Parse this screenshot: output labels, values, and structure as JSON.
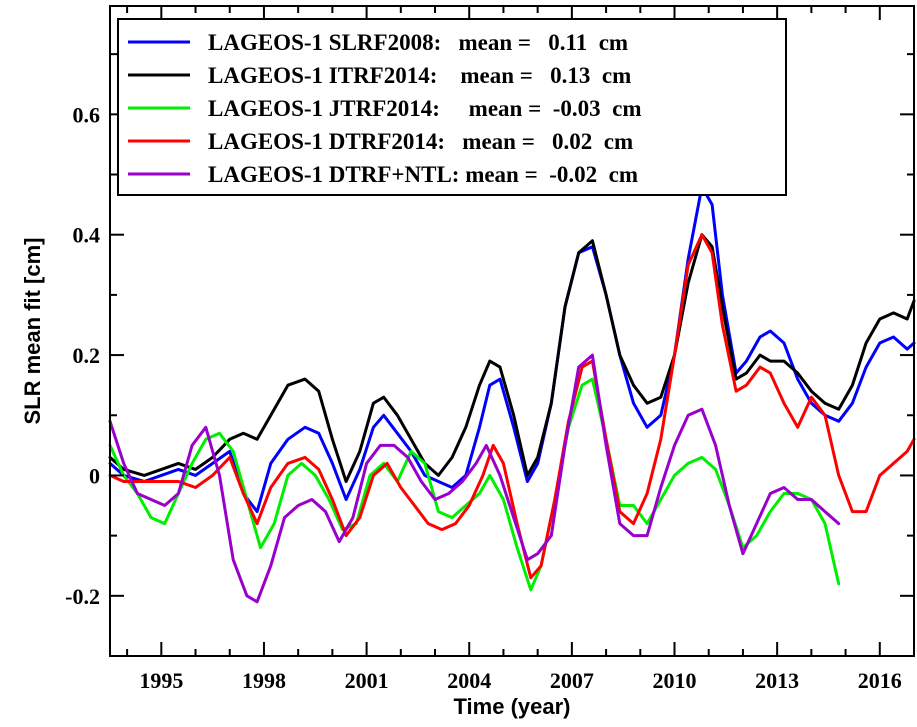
{
  "chart_data": {
    "type": "line",
    "title": "",
    "xlabel": "Time (year)",
    "ylabel": "SLR mean fit [cm]",
    "xlim": [
      1993.5,
      2017.0
    ],
    "ylim": [
      -0.3,
      0.78
    ],
    "x_ticks": [
      1995,
      1998,
      2001,
      2004,
      2007,
      2010,
      2013,
      2016
    ],
    "x_tick_labels": [
      "1995",
      "1998",
      "2001",
      "2004",
      "2007",
      "2010",
      "2013",
      "2016"
    ],
    "y_ticks": [
      -0.2,
      0,
      0.2,
      0.4,
      0.6
    ],
    "y_tick_labels": [
      "-0.2",
      "0",
      "0.2",
      "0.4",
      "0.6"
    ],
    "grid": false,
    "legend_position": "top-left",
    "series": [
      {
        "name": "LAGEOS-1 SLRF2008:",
        "legend_text": "LAGEOS-1 SLRF2008:   mean =   0.11  cm",
        "color": "#0000ff",
        "x": [
          1993.5,
          1993.9,
          1994.5,
          1995.0,
          1995.5,
          1996.0,
          1996.5,
          1997.0,
          1997.4,
          1997.8,
          1998.2,
          1998.7,
          1999.2,
          1999.6,
          2000.0,
          2000.4,
          2000.8,
          2001.2,
          2001.5,
          2001.9,
          2002.3,
          2002.7,
          2003.1,
          2003.5,
          2003.9,
          2004.3,
          2004.6,
          2004.9,
          2005.3,
          2005.7,
          2006.0,
          2006.4,
          2006.8,
          2007.2,
          2007.6,
          2008.0,
          2008.4,
          2008.8,
          2009.2,
          2009.6,
          2010.0,
          2010.4,
          2010.8,
          2011.1,
          2011.4,
          2011.8,
          2012.1,
          2012.5,
          2012.8,
          2013.2,
          2013.6,
          2014.0,
          2014.4,
          2014.8,
          2015.2,
          2015.6,
          2016.0,
          2016.4,
          2016.8,
          2017.0
        ],
        "y": [
          0.02,
          0.0,
          -0.01,
          0.0,
          0.01,
          0.0,
          0.02,
          0.04,
          -0.03,
          -0.06,
          0.02,
          0.06,
          0.08,
          0.07,
          0.02,
          -0.04,
          0.01,
          0.08,
          0.1,
          0.07,
          0.04,
          0.0,
          -0.01,
          -0.02,
          0.0,
          0.08,
          0.15,
          0.16,
          0.08,
          -0.01,
          0.02,
          0.12,
          0.28,
          0.37,
          0.38,
          0.3,
          0.2,
          0.12,
          0.08,
          0.1,
          0.2,
          0.36,
          0.48,
          0.45,
          0.3,
          0.17,
          0.19,
          0.23,
          0.24,
          0.22,
          0.16,
          0.12,
          0.1,
          0.09,
          0.12,
          0.18,
          0.22,
          0.23,
          0.21,
          0.22
        ]
      },
      {
        "name": "LAGEOS-1 ITRF2014:",
        "legend_text": "LAGEOS-1 ITRF2014:    mean =   0.13  cm",
        "color": "#000000",
        "x": [
          1993.5,
          1993.9,
          1994.5,
          1995.0,
          1995.5,
          1996.0,
          1996.5,
          1997.0,
          1997.4,
          1997.8,
          1998.2,
          1998.7,
          1999.2,
          1999.6,
          2000.0,
          2000.4,
          2000.8,
          2001.2,
          2001.5,
          2001.9,
          2002.3,
          2002.7,
          2003.1,
          2003.5,
          2003.9,
          2004.3,
          2004.6,
          2004.9,
          2005.3,
          2005.7,
          2006.0,
          2006.4,
          2006.8,
          2007.2,
          2007.6,
          2008.0,
          2008.4,
          2008.8,
          2009.2,
          2009.6,
          2010.0,
          2010.4,
          2010.8,
          2011.1,
          2011.4,
          2011.8,
          2012.1,
          2012.5,
          2012.8,
          2013.2,
          2013.6,
          2014.0,
          2014.4,
          2014.8,
          2015.2,
          2015.6,
          2016.0,
          2016.4,
          2016.8,
          2017.0
        ],
        "y": [
          0.03,
          0.01,
          0.0,
          0.01,
          0.02,
          0.01,
          0.03,
          0.06,
          0.07,
          0.06,
          0.1,
          0.15,
          0.16,
          0.14,
          0.06,
          -0.01,
          0.04,
          0.12,
          0.13,
          0.1,
          0.06,
          0.02,
          0.0,
          0.03,
          0.08,
          0.15,
          0.19,
          0.18,
          0.1,
          0.0,
          0.03,
          0.12,
          0.28,
          0.37,
          0.39,
          0.3,
          0.2,
          0.15,
          0.12,
          0.13,
          0.2,
          0.32,
          0.4,
          0.38,
          0.28,
          0.16,
          0.17,
          0.2,
          0.19,
          0.19,
          0.17,
          0.14,
          0.12,
          0.11,
          0.15,
          0.22,
          0.26,
          0.27,
          0.26,
          0.29
        ]
      },
      {
        "name": "LAGEOS-1 JTRF2014:",
        "legend_text": "LAGEOS-1 JTRF2014:     mean =  -0.03  cm",
        "color": "#00ee00",
        "x": [
          1993.5,
          1993.9,
          1994.3,
          1994.7,
          1995.1,
          1995.5,
          1995.9,
          1996.3,
          1996.7,
          1997.1,
          1997.5,
          1997.9,
          1998.3,
          1998.7,
          1999.1,
          1999.5,
          1999.9,
          2000.3,
          2000.7,
          2001.1,
          2001.5,
          2001.9,
          2002.3,
          2002.7,
          2003.1,
          2003.5,
          2003.9,
          2004.3,
          2004.6,
          2005.0,
          2005.4,
          2005.8,
          2006.1,
          2006.5,
          2006.9,
          2007.3,
          2007.6,
          2008.0,
          2008.4,
          2008.8,
          2009.2,
          2009.6,
          2010.0,
          2010.4,
          2010.8,
          2011.2,
          2011.6,
          2012.0,
          2012.4,
          2012.8,
          2013.2,
          2013.6,
          2014.0,
          2014.4,
          2014.8
        ],
        "y": [
          0.05,
          0.0,
          -0.03,
          -0.07,
          -0.08,
          -0.03,
          0.02,
          0.06,
          0.07,
          0.04,
          -0.04,
          -0.12,
          -0.08,
          0.0,
          0.02,
          0.0,
          -0.04,
          -0.09,
          -0.08,
          0.0,
          0.02,
          -0.01,
          0.04,
          0.02,
          -0.06,
          -0.07,
          -0.05,
          -0.03,
          0.0,
          -0.04,
          -0.12,
          -0.19,
          -0.15,
          -0.04,
          0.08,
          0.15,
          0.16,
          0.06,
          -0.05,
          -0.05,
          -0.08,
          -0.04,
          0.0,
          0.02,
          0.03,
          0.01,
          -0.05,
          -0.12,
          -0.1,
          -0.06,
          -0.03,
          -0.03,
          -0.04,
          -0.08,
          -0.18
        ]
      },
      {
        "name": "LAGEOS-1 DTRF2014:",
        "legend_text": "LAGEOS-1 DTRF2014:   mean =   0.02  cm",
        "color": "#ff0000",
        "x": [
          1993.5,
          1993.9,
          1994.5,
          1995.0,
          1995.5,
          1996.0,
          1996.5,
          1997.0,
          1997.4,
          1997.8,
          1998.2,
          1998.7,
          1999.2,
          1999.6,
          2000.0,
          2000.4,
          2000.8,
          2001.2,
          2001.6,
          2002.0,
          2002.4,
          2002.8,
          2003.2,
          2003.6,
          2004.0,
          2004.4,
          2004.7,
          2005.0,
          2005.4,
          2005.8,
          2006.1,
          2006.5,
          2006.9,
          2007.3,
          2007.6,
          2008.0,
          2008.4,
          2008.8,
          2009.2,
          2009.6,
          2010.0,
          2010.4,
          2010.8,
          2011.1,
          2011.4,
          2011.8,
          2012.1,
          2012.5,
          2012.8,
          2013.2,
          2013.6,
          2014.0,
          2014.4,
          2014.8,
          2015.2,
          2015.6,
          2016.0,
          2016.4,
          2016.8,
          2017.0
        ],
        "y": [
          0.0,
          -0.01,
          -0.01,
          -0.01,
          -0.01,
          -0.02,
          0.0,
          0.03,
          -0.03,
          -0.08,
          -0.02,
          0.02,
          0.03,
          0.01,
          -0.04,
          -0.1,
          -0.07,
          0.0,
          0.02,
          -0.02,
          -0.05,
          -0.08,
          -0.09,
          -0.08,
          -0.05,
          0.0,
          0.05,
          0.02,
          -0.08,
          -0.17,
          -0.15,
          -0.04,
          0.09,
          0.18,
          0.19,
          0.06,
          -0.06,
          -0.08,
          -0.03,
          0.06,
          0.2,
          0.35,
          0.4,
          0.37,
          0.25,
          0.14,
          0.15,
          0.18,
          0.17,
          0.12,
          0.08,
          0.13,
          0.1,
          0.0,
          -0.06,
          -0.06,
          0.0,
          0.02,
          0.04,
          0.06
        ]
      },
      {
        "name": "LAGEOS-1 DTRF+NTL:",
        "legend_text": "LAGEOS-1 DTRF+NTL: mean =  -0.02  cm",
        "color": "#9900cc",
        "x": [
          1993.5,
          1993.9,
          1994.3,
          1994.7,
          1995.1,
          1995.5,
          1995.9,
          1996.3,
          1996.7,
          1997.1,
          1997.5,
          1997.8,
          1998.2,
          1998.6,
          1999.0,
          1999.4,
          1999.8,
          2000.2,
          2000.6,
          2001.0,
          2001.4,
          2001.8,
          2002.2,
          2002.6,
          2003.0,
          2003.4,
          2003.8,
          2004.2,
          2004.5,
          2004.9,
          2005.3,
          2005.7,
          2006.0,
          2006.4,
          2006.8,
          2007.2,
          2007.6,
          2008.0,
          2008.4,
          2008.8,
          2009.2,
          2009.6,
          2010.0,
          2010.4,
          2010.8,
          2011.2,
          2011.6,
          2012.0,
          2012.4,
          2012.8,
          2013.2,
          2013.6,
          2014.0,
          2014.4,
          2014.8
        ],
        "y": [
          0.09,
          0.02,
          -0.03,
          -0.04,
          -0.05,
          -0.03,
          0.05,
          0.08,
          0.0,
          -0.14,
          -0.2,
          -0.21,
          -0.15,
          -0.07,
          -0.05,
          -0.04,
          -0.06,
          -0.11,
          -0.07,
          0.02,
          0.05,
          0.05,
          0.03,
          -0.01,
          -0.04,
          -0.03,
          -0.01,
          0.02,
          0.05,
          0.0,
          -0.07,
          -0.14,
          -0.13,
          -0.1,
          0.05,
          0.18,
          0.2,
          0.05,
          -0.08,
          -0.1,
          -0.1,
          -0.02,
          0.05,
          0.1,
          0.11,
          0.05,
          -0.05,
          -0.13,
          -0.08,
          -0.03,
          -0.02,
          -0.04,
          -0.04,
          -0.06,
          -0.08
        ]
      }
    ]
  }
}
